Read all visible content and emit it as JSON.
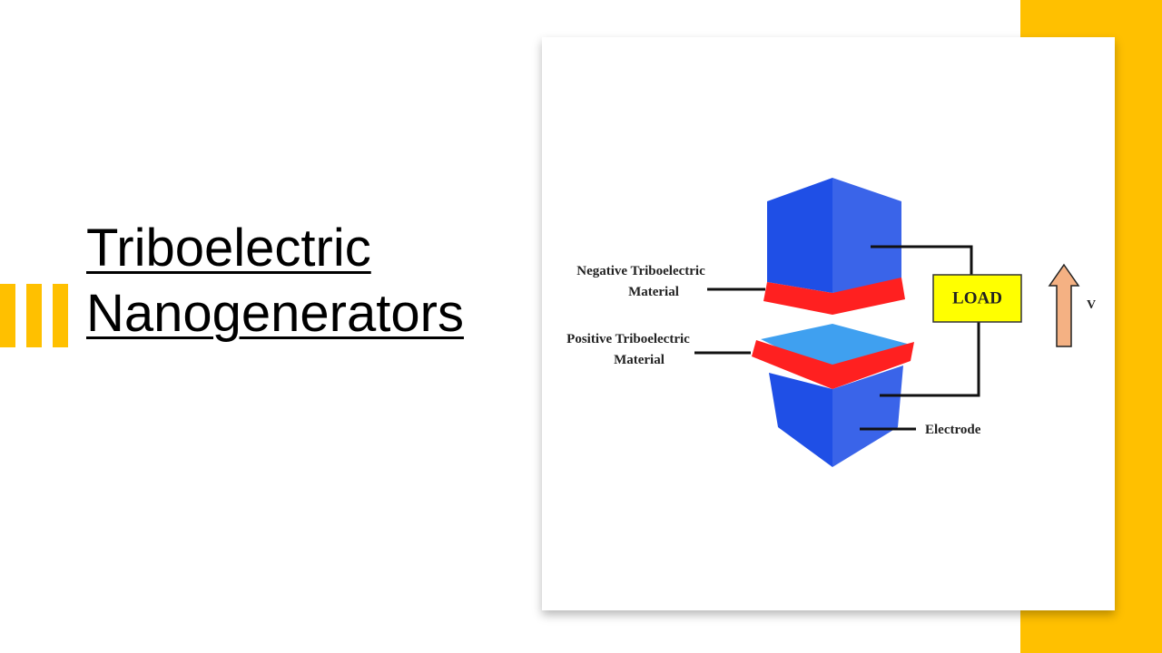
{
  "slide": {
    "title_line1": "Triboelectric",
    "title_line2": "Nanogenerators"
  },
  "colors": {
    "accent": "#FFC000",
    "block_blue": "#1F4FE6",
    "block_blue_light": "#3FA0F0",
    "tribo_layer_red": "#FF2020",
    "load_fill": "#FFFF00",
    "arrow_fill": "#F4B183"
  },
  "diagram": {
    "labels": {
      "negative_line1": "Negative Triboelectric",
      "negative_line2": "Material",
      "positive_line1": "Positive Triboelectric",
      "positive_line2": "Material",
      "electrode": "Electrode",
      "load": "LOAD",
      "voltage": "V"
    },
    "icons": [
      "up-arrow-icon"
    ]
  }
}
